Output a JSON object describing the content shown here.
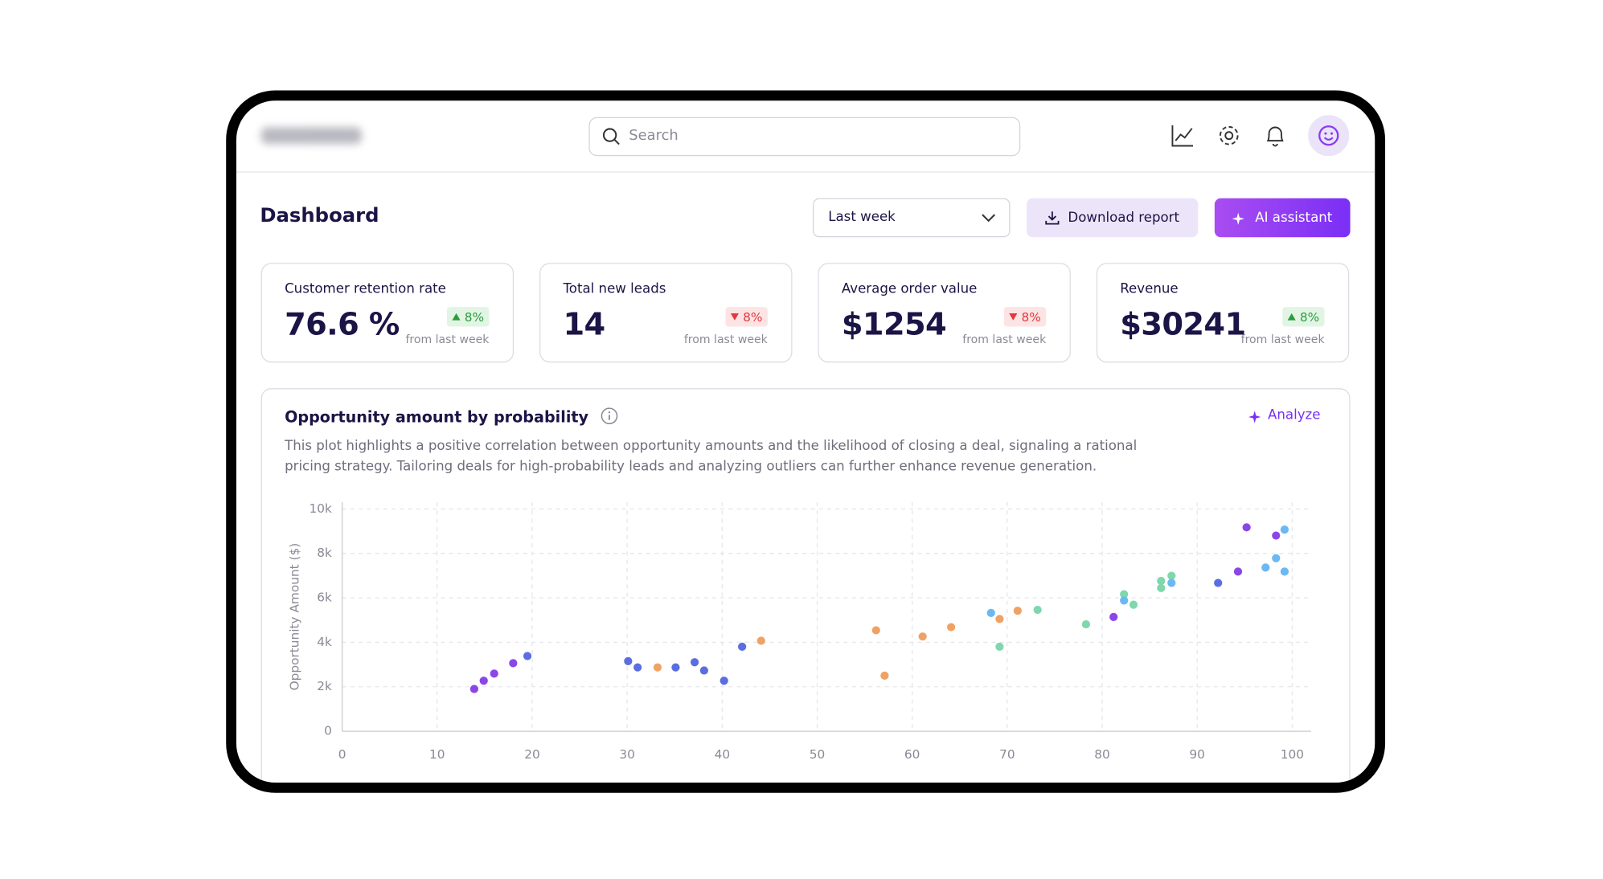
{
  "header": {
    "search_placeholder": "Search"
  },
  "page": {
    "title": "Dashboard",
    "period": "Last week",
    "download_button": "Download report",
    "ai_button": "AI assistant"
  },
  "kpis": [
    {
      "title": "Customer retention rate",
      "value": "76.6 %",
      "change": "8%",
      "trend": "up",
      "note": "from last week"
    },
    {
      "title": "Total new leads",
      "value": "14",
      "change": "8%",
      "trend": "down",
      "note": "from last week"
    },
    {
      "title": "Average order value",
      "value": "$1254",
      "change": "8%",
      "trend": "down",
      "note": "from last week"
    },
    {
      "title": "Revenue",
      "value": "$30241",
      "change": "8%",
      "trend": "up",
      "note": "from last week"
    }
  ],
  "chart_card": {
    "title": "Opportunity amount by probability",
    "action": "Analyze",
    "description": "This plot highlights a positive correlation between opportunity amounts and the likelihood of closing a deal, signaling a rational pricing strategy. Tailoring deals for high-probability leads and analyzing outliers can further enhance revenue generation."
  },
  "chart_data": {
    "type": "scatter",
    "ylabel": "Opportunity Amount ($)",
    "xlim": [
      0,
      102
    ],
    "ylim": [
      0,
      10300
    ],
    "xticks": [
      0,
      10,
      20,
      30,
      40,
      50,
      60,
      70,
      80,
      90,
      100
    ],
    "yticks": [
      0,
      {
        "value": 2000,
        "label": "2k"
      },
      {
        "value": 4000,
        "label": "4k"
      },
      {
        "value": 6000,
        "label": "6k"
      },
      {
        "value": 8000,
        "label": "8k"
      },
      {
        "value": 10000,
        "label": "10k"
      }
    ],
    "grid": true,
    "series": [
      {
        "color": "#8b46e8",
        "x": [
          13.9,
          14.9,
          16,
          18,
          81.2,
          94.3,
          95.2,
          98.3
        ],
        "values": [
          1900,
          2270,
          2590,
          3060,
          5140,
          7180,
          9170,
          8800
        ]
      },
      {
        "color": "#5b6ee1",
        "x": [
          19.5,
          30.1,
          31.1,
          35.1,
          37.1,
          38.1,
          40.2,
          42.1,
          92.2
        ],
        "values": [
          3380,
          3150,
          2870,
          2870,
          3100,
          2730,
          2270,
          3800,
          6670
        ]
      },
      {
        "color": "#f0a264",
        "x": [
          33.2,
          44.1,
          56.2,
          57.1,
          61.1,
          64.1,
          69.2,
          71.1
        ],
        "values": [
          2870,
          4070,
          4540,
          2500,
          4260,
          4680,
          5050,
          5420
        ]
      },
      {
        "color": "#7fd8ad",
        "x": [
          69.2,
          73.2,
          78.3,
          82.3,
          83.3,
          86.2,
          86.2,
          87.3
        ],
        "values": [
          3800,
          5460,
          4810,
          6160,
          5690,
          6440,
          6760,
          6990
        ]
      },
      {
        "color": "#6bb8f3",
        "x": [
          68.3,
          82.3,
          87.3,
          97.2,
          98.3,
          99.2,
          99.2
        ],
        "values": [
          5320,
          5880,
          6670,
          7360,
          7780,
          7180,
          9070
        ]
      }
    ]
  }
}
